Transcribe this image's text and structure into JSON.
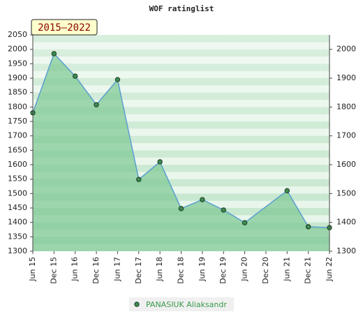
{
  "chart_data": {
    "type": "area",
    "title": "WOF ratinglist",
    "badge": "2015–2022",
    "categories": [
      "Jun 15",
      "Dec 15",
      "Jun 16",
      "Dec 16",
      "Jun 17",
      "Dec 17",
      "Jun 18",
      "Dec 18",
      "Jun 19",
      "Dec 19",
      "Jun 20",
      "Dec 20",
      "Jun 21",
      "Dec 21",
      "Jun 22"
    ],
    "series": [
      {
        "name": "PANASIUK Aliaksandr",
        "color": "#3c8c50",
        "line_color": "#5a9ed0",
        "fill": "#7cc892",
        "x": [
          "Jun 15",
          "Dec 15",
          "Jun 16",
          "Dec 16",
          "Jun 17",
          "Dec 17",
          "Jun 18",
          "Dec 18",
          "Jun 19",
          "Dec 19",
          "Jun 20",
          "Jun 21",
          "Dec 21",
          "Jun 22"
        ],
        "values": [
          1780,
          1985,
          1907,
          1808,
          1895,
          1549,
          1610,
          1448,
          1479,
          1443,
          1399,
          1510,
          1385,
          1382
        ]
      }
    ],
    "ylim": [
      1300,
      2050
    ],
    "yticks": [
      1300,
      1350,
      1400,
      1450,
      1500,
      1550,
      1600,
      1650,
      1700,
      1750,
      1800,
      1850,
      1900,
      1950,
      2000,
      2050
    ],
    "y2lim": [
      1300,
      2050
    ],
    "y2ticks": [
      1300,
      1400,
      1500,
      1600,
      1700,
      1800,
      1900,
      2000
    ]
  }
}
